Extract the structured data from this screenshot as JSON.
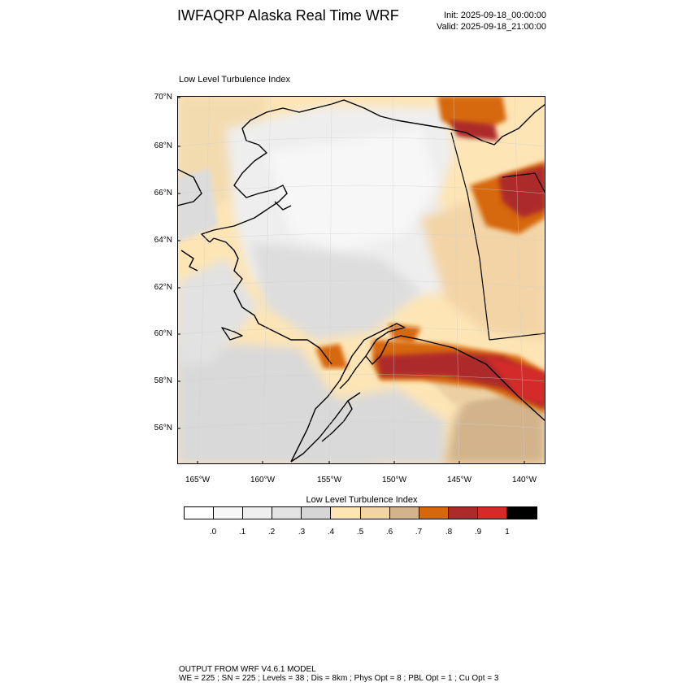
{
  "header": {
    "title": "IWFAQRP Alaska Real Time WRF",
    "init": "Init: 2025-09-18_00:00:00",
    "valid": "Valid: 2025-09-18_21:00:00"
  },
  "map": {
    "title": "Low Level Turbulence Index",
    "lat_labels": [
      "70°N",
      "68°N",
      "66°N",
      "64°N",
      "62°N",
      "60°N",
      "58°N",
      "56°N"
    ],
    "lon_labels": [
      "165°W",
      "160°W",
      "155°W",
      "150°W",
      "145°W",
      "140°W"
    ]
  },
  "colorbar": {
    "title": "Low Level Turbulence Index",
    "colors": [
      "#ffffff",
      "#f7f7f7",
      "#efefef",
      "#e3e3e3",
      "#d6d6d6",
      "#fde5b5",
      "#f3d4a6",
      "#d2b38b",
      "#d6670d",
      "#ad2a2a",
      "#d42a2a",
      "#000000"
    ],
    "labels": [
      ".0",
      ".1",
      ".2",
      ".3",
      ".4",
      ".5",
      ".6",
      ".7",
      ".8",
      ".9",
      "1"
    ]
  },
  "footer": {
    "line1": "OUTPUT FROM WRF V4.6.1 MODEL",
    "line2": "WE = 225 ; SN = 225 ; Levels = 38 ; Dis = 8km ; Phys Opt = 8 ; PBL Opt = 1 ; Cu Opt = 3"
  }
}
